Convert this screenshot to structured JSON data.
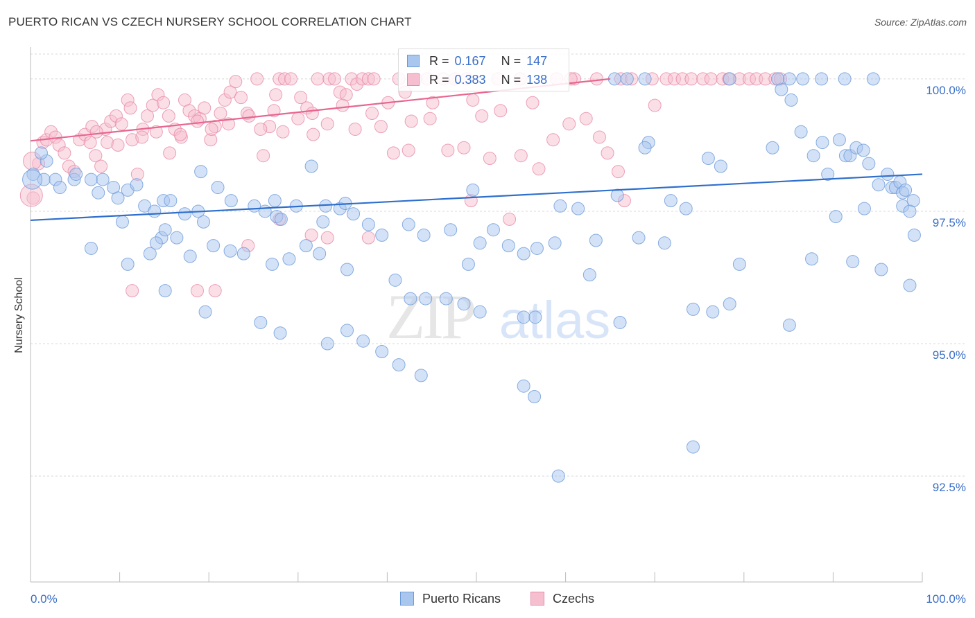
{
  "title": "PUERTO RICAN VS CZECH NURSERY SCHOOL CORRELATION CHART",
  "source": "Source: ZipAtlas.com",
  "watermark": {
    "zip": "ZIP",
    "atlas": "atlas"
  },
  "legend": {
    "rows": [
      {
        "r_label": "R =",
        "r_value": "0.167",
        "n_label": "N =",
        "n_value": "147"
      },
      {
        "r_label": "R =",
        "r_value": "0.383",
        "n_label": "N =",
        "n_value": "138"
      }
    ]
  },
  "bottom_legend": {
    "series1": "Puerto Ricans",
    "series2": "Czechs"
  },
  "colors": {
    "blue_fill": "#a9c6ef",
    "blue_stroke": "#6b9ad8",
    "blue_line": "#2f6fcc",
    "pink_fill": "#f5bfd0",
    "pink_stroke": "#e88aa8",
    "pink_line": "#e8658f",
    "grid": "#d8d8d8",
    "tick_text": "#3a6fc9"
  },
  "chart_data": {
    "type": "scatter",
    "title": "PUERTO RICAN VS CZECH NURSERY SCHOOL CORRELATION CHART",
    "xlabel": "",
    "ylabel": "Nursery School",
    "xlim": [
      0,
      100
    ],
    "ylim": [
      90.5,
      100.6
    ],
    "x_tick_labels": [
      "0.0%",
      "100.0%"
    ],
    "y_ticks": [
      92.5,
      95.0,
      97.5,
      100.0
    ],
    "y_tick_labels": [
      "92.5%",
      "95.0%",
      "97.5%",
      "100.0%"
    ],
    "series": [
      {
        "name": "Puerto Ricans",
        "r": 0.167,
        "n": 147,
        "trend": {
          "x": [
            0,
            100
          ],
          "y": [
            97.33,
            98.2
          ]
        },
        "points": [
          [
            0.3,
            98.2
          ],
          [
            1.5,
            98.1
          ],
          [
            2.8,
            98.1
          ],
          [
            4.9,
            98.1
          ],
          [
            6.8,
            98.1
          ],
          [
            1.8,
            98.45
          ],
          [
            3.3,
            97.95
          ],
          [
            1.2,
            98.6
          ],
          [
            5.1,
            98.2
          ],
          [
            8.1,
            98.1
          ],
          [
            9.3,
            97.95
          ],
          [
            10.9,
            97.9
          ],
          [
            7.6,
            97.85
          ],
          [
            9.8,
            97.75
          ],
          [
            11.9,
            98.0
          ],
          [
            12.8,
            97.6
          ],
          [
            14.9,
            97.7
          ],
          [
            15.7,
            97.7
          ],
          [
            17.3,
            97.45
          ],
          [
            18.8,
            97.5
          ],
          [
            19.4,
            97.3
          ],
          [
            13.9,
            97.5
          ],
          [
            10.3,
            97.3
          ],
          [
            14.7,
            97.0
          ],
          [
            15.1,
            97.15
          ],
          [
            21.0,
            97.95
          ],
          [
            19.1,
            98.25
          ],
          [
            22.5,
            97.7
          ],
          [
            25.1,
            97.6
          ],
          [
            27.6,
            97.4
          ],
          [
            28.1,
            97.35
          ],
          [
            26.3,
            97.5
          ],
          [
            27.4,
            97.7
          ],
          [
            29.8,
            97.6
          ],
          [
            33.1,
            97.6
          ],
          [
            34.7,
            97.55
          ],
          [
            31.5,
            98.35
          ],
          [
            32.8,
            97.3
          ],
          [
            36.2,
            97.45
          ],
          [
            37.9,
            97.25
          ],
          [
            35.3,
            97.65
          ],
          [
            39.4,
            97.05
          ],
          [
            42.4,
            97.25
          ],
          [
            44.1,
            97.05
          ],
          [
            47.1,
            97.15
          ],
          [
            49.6,
            97.9
          ],
          [
            50.4,
            96.9
          ],
          [
            49.1,
            96.5
          ],
          [
            51.9,
            97.15
          ],
          [
            53.6,
            96.85
          ],
          [
            55.3,
            96.7
          ],
          [
            56.8,
            96.8
          ],
          [
            58.8,
            96.9
          ],
          [
            59.4,
            97.6
          ],
          [
            61.4,
            97.55
          ],
          [
            63.4,
            96.95
          ],
          [
            65.8,
            97.8
          ],
          [
            68.2,
            97.0
          ],
          [
            69.3,
            98.8
          ],
          [
            68.9,
            98.7
          ],
          [
            71.8,
            97.7
          ],
          [
            73.5,
            97.55
          ],
          [
            13.4,
            96.7
          ],
          [
            14.1,
            96.9
          ],
          [
            16.4,
            97.0
          ],
          [
            17.9,
            96.65
          ],
          [
            20.5,
            96.85
          ],
          [
            22.4,
            96.75
          ],
          [
            23.9,
            96.7
          ],
          [
            27.1,
            96.5
          ],
          [
            29.0,
            96.6
          ],
          [
            30.9,
            96.85
          ],
          [
            32.4,
            96.7
          ],
          [
            35.5,
            96.4
          ],
          [
            40.9,
            96.2
          ],
          [
            42.6,
            95.85
          ],
          [
            44.3,
            95.85
          ],
          [
            46.6,
            95.85
          ],
          [
            48.6,
            95.75
          ],
          [
            50.4,
            95.6
          ],
          [
            55.3,
            95.5
          ],
          [
            56.6,
            95.5
          ],
          [
            66.1,
            95.4
          ],
          [
            74.3,
            95.65
          ],
          [
            76.5,
            95.6
          ],
          [
            78.4,
            95.75
          ],
          [
            6.8,
            96.8
          ],
          [
            10.9,
            96.5
          ],
          [
            15.1,
            96.0
          ],
          [
            19.6,
            95.6
          ],
          [
            25.8,
            95.4
          ],
          [
            28.0,
            95.2
          ],
          [
            33.3,
            95.0
          ],
          [
            35.5,
            95.25
          ],
          [
            37.3,
            95.05
          ],
          [
            39.4,
            94.85
          ],
          [
            41.3,
            94.6
          ],
          [
            43.8,
            94.4
          ],
          [
            55.3,
            94.2
          ],
          [
            56.5,
            94.0
          ],
          [
            59.2,
            92.5
          ],
          [
            74.3,
            93.05
          ],
          [
            62.7,
            96.3
          ],
          [
            71.1,
            96.9
          ],
          [
            79.5,
            96.5
          ],
          [
            85.1,
            95.35
          ],
          [
            87.6,
            96.6
          ],
          [
            90.3,
            97.4
          ],
          [
            92.2,
            96.55
          ],
          [
            95.4,
            96.4
          ],
          [
            98.6,
            96.1
          ],
          [
            99.1,
            97.05
          ],
          [
            97.8,
            97.6
          ],
          [
            93.5,
            97.55
          ],
          [
            76.0,
            98.5
          ],
          [
            77.4,
            98.35
          ],
          [
            83.2,
            98.7
          ],
          [
            84.2,
            99.8
          ],
          [
            85.3,
            99.6
          ],
          [
            86.4,
            99.0
          ],
          [
            87.8,
            98.55
          ],
          [
            88.8,
            98.8
          ],
          [
            89.4,
            98.2
          ],
          [
            91.4,
            98.55
          ],
          [
            90.7,
            98.85
          ],
          [
            91.9,
            98.55
          ],
          [
            92.6,
            98.7
          ],
          [
            93.4,
            98.65
          ],
          [
            94.0,
            98.4
          ],
          [
            95.1,
            98.0
          ],
          [
            96.1,
            98.2
          ],
          [
            96.6,
            97.95
          ],
          [
            97.0,
            97.95
          ],
          [
            97.5,
            98.05
          ],
          [
            97.8,
            97.85
          ],
          [
            98.1,
            97.9
          ],
          [
            99.0,
            97.7
          ],
          [
            65.5,
            100.0
          ],
          [
            66.9,
            100.0
          ],
          [
            68.9,
            100.0
          ],
          [
            78.4,
            100.0
          ],
          [
            83.8,
            100.0
          ],
          [
            85.1,
            100.0
          ],
          [
            86.6,
            100.0
          ],
          [
            88.7,
            100.0
          ],
          [
            91.3,
            100.0
          ],
          [
            94.5,
            100.0
          ],
          [
            98.6,
            97.5
          ]
        ]
      },
      {
        "name": "Czechs",
        "r": 0.383,
        "n": 138,
        "trend": {
          "x": [
            0,
            65
          ],
          "y": [
            98.83,
            100.0
          ]
        },
        "points": [
          [
            0.3,
            97.75
          ],
          [
            0.9,
            98.4
          ],
          [
            1.4,
            98.8
          ],
          [
            1.8,
            98.85
          ],
          [
            2.3,
            99.0
          ],
          [
            2.8,
            98.9
          ],
          [
            3.2,
            98.75
          ],
          [
            3.8,
            98.6
          ],
          [
            4.3,
            98.35
          ],
          [
            4.9,
            98.25
          ],
          [
            5.5,
            98.85
          ],
          [
            6.1,
            98.95
          ],
          [
            6.7,
            98.8
          ],
          [
            7.3,
            98.55
          ],
          [
            7.9,
            98.35
          ],
          [
            8.4,
            99.05
          ],
          [
            9.0,
            99.2
          ],
          [
            9.6,
            99.3
          ],
          [
            10.2,
            99.15
          ],
          [
            10.9,
            99.6
          ],
          [
            11.4,
            98.85
          ],
          [
            12.0,
            98.2
          ],
          [
            12.6,
            99.05
          ],
          [
            13.1,
            99.3
          ],
          [
            13.7,
            99.5
          ],
          [
            14.3,
            99.7
          ],
          [
            14.9,
            99.55
          ],
          [
            15.5,
            99.3
          ],
          [
            16.2,
            99.05
          ],
          [
            16.9,
            98.9
          ],
          [
            17.3,
            99.6
          ],
          [
            17.8,
            99.4
          ],
          [
            18.4,
            99.3
          ],
          [
            19.0,
            99.25
          ],
          [
            19.5,
            99.45
          ],
          [
            20.2,
            98.85
          ],
          [
            20.7,
            99.1
          ],
          [
            21.3,
            99.35
          ],
          [
            21.8,
            99.6
          ],
          [
            22.4,
            99.75
          ],
          [
            23.0,
            99.95
          ],
          [
            23.6,
            99.65
          ],
          [
            24.3,
            99.35
          ],
          [
            25.4,
            100.0
          ],
          [
            26.1,
            98.55
          ],
          [
            26.8,
            99.1
          ],
          [
            27.3,
            99.4
          ],
          [
            27.9,
            100.0
          ],
          [
            28.5,
            100.0
          ],
          [
            29.2,
            100.0
          ],
          [
            30.3,
            99.65
          ],
          [
            31.0,
            99.45
          ],
          [
            31.6,
            99.35
          ],
          [
            32.2,
            100.0
          ],
          [
            33.5,
            100.0
          ],
          [
            34.1,
            100.0
          ],
          [
            34.7,
            99.75
          ],
          [
            35.4,
            99.7
          ],
          [
            36.0,
            100.0
          ],
          [
            36.6,
            99.9
          ],
          [
            37.2,
            100.0
          ],
          [
            37.9,
            100.0
          ],
          [
            38.5,
            100.0
          ],
          [
            39.3,
            99.1
          ],
          [
            40.1,
            99.55
          ],
          [
            41.3,
            100.0
          ],
          [
            42.0,
            99.75
          ],
          [
            42.4,
            98.65
          ],
          [
            43.2,
            100.0
          ],
          [
            44.5,
            100.0
          ],
          [
            45.1,
            99.55
          ],
          [
            46.3,
            100.0
          ],
          [
            47.6,
            100.0
          ],
          [
            48.9,
            100.0
          ],
          [
            49.6,
            99.6
          ],
          [
            51.5,
            98.5
          ],
          [
            52.4,
            100.0
          ],
          [
            54.9,
            100.0
          ],
          [
            56.3,
            99.55
          ],
          [
            59.0,
            100.0
          ],
          [
            61.0,
            100.0
          ],
          [
            63.5,
            100.0
          ],
          [
            66.2,
            100.0
          ],
          [
            67.4,
            100.0
          ],
          [
            69.7,
            100.0
          ],
          [
            70.0,
            99.5
          ],
          [
            71.3,
            100.0
          ],
          [
            72.2,
            100.0
          ],
          [
            73.1,
            100.0
          ],
          [
            74.1,
            100.0
          ],
          [
            75.4,
            100.0
          ],
          [
            76.3,
            100.0
          ],
          [
            77.6,
            100.0
          ],
          [
            78.3,
            100.0
          ],
          [
            79.5,
            100.0
          ],
          [
            80.6,
            100.0
          ],
          [
            81.4,
            100.0
          ],
          [
            82.4,
            100.0
          ],
          [
            83.5,
            100.0
          ],
          [
            84.1,
            100.0
          ],
          [
            6.9,
            99.1
          ],
          [
            7.4,
            99.0
          ],
          [
            8.6,
            98.8
          ],
          [
            9.8,
            98.75
          ],
          [
            11.2,
            99.45
          ],
          [
            12.5,
            98.9
          ],
          [
            14.1,
            99.0
          ],
          [
            15.6,
            98.6
          ],
          [
            16.8,
            98.95
          ],
          [
            18.7,
            99.2
          ],
          [
            20.3,
            99.05
          ],
          [
            22.2,
            99.15
          ],
          [
            24.5,
            99.3
          ],
          [
            25.8,
            99.05
          ],
          [
            27.5,
            99.7
          ],
          [
            28.3,
            99.0
          ],
          [
            30.0,
            99.25
          ],
          [
            31.7,
            98.95
          ],
          [
            33.3,
            99.15
          ],
          [
            35.0,
            99.5
          ],
          [
            36.4,
            99.05
          ],
          [
            38.3,
            99.35
          ],
          [
            40.7,
            98.6
          ],
          [
            42.7,
            99.2
          ],
          [
            44.8,
            99.25
          ],
          [
            46.8,
            98.65
          ],
          [
            48.6,
            98.7
          ],
          [
            50.6,
            99.3
          ],
          [
            52.7,
            99.4
          ],
          [
            55.0,
            98.55
          ],
          [
            57.0,
            98.3
          ],
          [
            58.6,
            98.85
          ],
          [
            60.4,
            99.15
          ],
          [
            62.3,
            99.25
          ],
          [
            63.8,
            98.9
          ],
          [
            64.7,
            98.6
          ],
          [
            65.9,
            98.25
          ],
          [
            66.6,
            97.7
          ],
          [
            60.6,
            100.0
          ],
          [
            11.4,
            96.0
          ],
          [
            18.7,
            96.0
          ],
          [
            20.7,
            96.0
          ],
          [
            24.4,
            96.85
          ],
          [
            27.9,
            97.35
          ],
          [
            31.5,
            97.05
          ],
          [
            33.3,
            97.0
          ],
          [
            37.9,
            97.0
          ],
          [
            49.4,
            97.7
          ],
          [
            53.7,
            97.35
          ]
        ]
      }
    ]
  }
}
